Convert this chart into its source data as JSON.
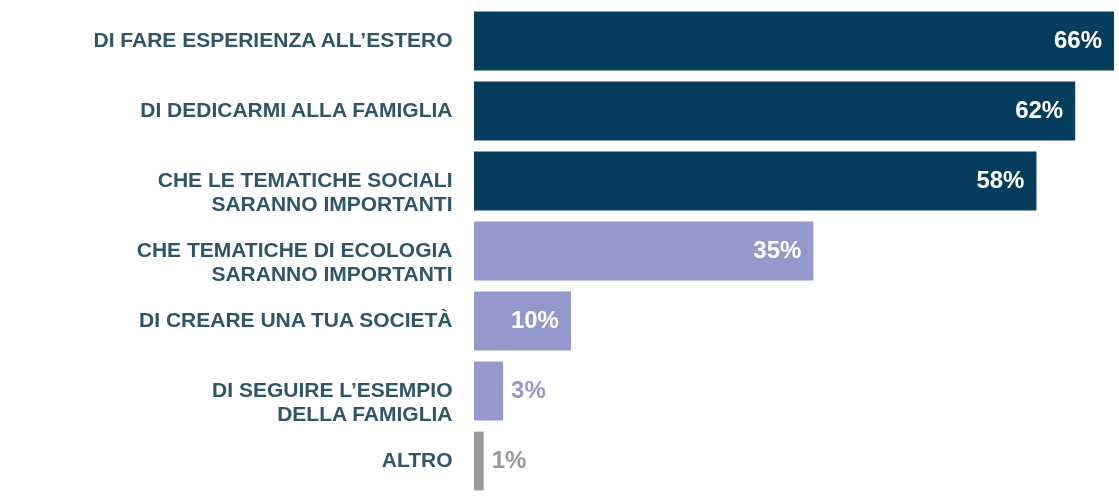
{
  "chart_data": {
    "type": "bar",
    "orientation": "horizontal",
    "categories": [
      "DI FARE ESPERIENZA ALL’ESTERO",
      "DI DEDICARMI ALLA FAMIGLIA",
      "CHE LE TEMATICHE SOCIALI\nSARANNO IMPORTANTI",
      "CHE TEMATICHE DI ECOLOGIA\nSARANNO IMPORTANTI",
      "DI CREARE UNA TUA SOCIETÀ",
      "DI SEGUIRE L’ESEMPIO\nDELLA FAMIGLIA",
      "ALTRO"
    ],
    "values": [
      66,
      62,
      58,
      35,
      10,
      3,
      1
    ],
    "value_labels": [
      "66%",
      "62%",
      "58%",
      "35%",
      "10%",
      "3%",
      "1%"
    ],
    "colors": [
      "#063d5c",
      "#063d5c",
      "#063d5c",
      "#9499cc",
      "#9499cc",
      "#9499cc",
      "#9a9a9a"
    ]
  }
}
